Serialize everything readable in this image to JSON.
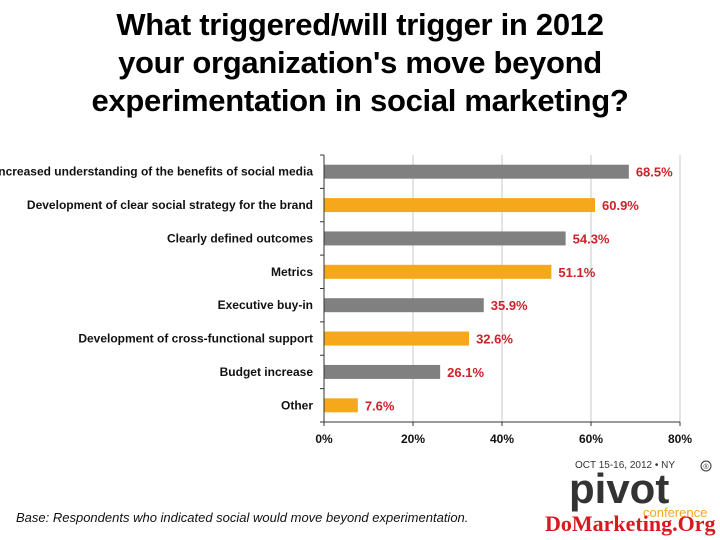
{
  "title_lines": [
    "What triggered/will trigger in 2012",
    "your organization's  move beyond",
    "experimentation in social marketing?"
  ],
  "chart_data": {
    "type": "bar",
    "orientation": "horizontal",
    "categories": [
      "Increased understanding of the benefits of social media",
      "Development of clear social strategy for the brand",
      "Clearly defined outcomes",
      "Metrics",
      "Executive buy-in",
      "Development of cross-functional support",
      "Budget increase",
      "Other"
    ],
    "values": [
      68.5,
      60.9,
      54.3,
      51.1,
      35.9,
      32.6,
      26.1,
      7.6
    ],
    "value_labels": [
      "68.5%",
      "60.9%",
      "54.3%",
      "51.1%",
      "35.9%",
      "32.6%",
      "26.1%",
      "7.6%"
    ],
    "bar_colors": [
      "#808080",
      "#f5a81c",
      "#808080",
      "#f5a81c",
      "#808080",
      "#f5a81c",
      "#808080",
      "#f5a81c"
    ],
    "value_label_color": "#cc2229",
    "xlim": [
      0,
      80
    ],
    "xticks": [
      0,
      20,
      40,
      60,
      80
    ],
    "xtick_labels": [
      "0%",
      "20%",
      "40%",
      "60%",
      "80%"
    ],
    "grid": "vertical",
    "legend": "none"
  },
  "footnote": "Base: Respondents who indicated social would move beyond experimentation.",
  "logo": {
    "date_text": "OCT 15-16, 2012 • NY",
    "registered_mark": "®",
    "brand_text": "pivot",
    "conference_text": "conference",
    "site_text": "DoMarketing.Org",
    "colors": {
      "pivot": "#333333",
      "conference": "#f5a81c",
      "site": "#d71920"
    }
  }
}
